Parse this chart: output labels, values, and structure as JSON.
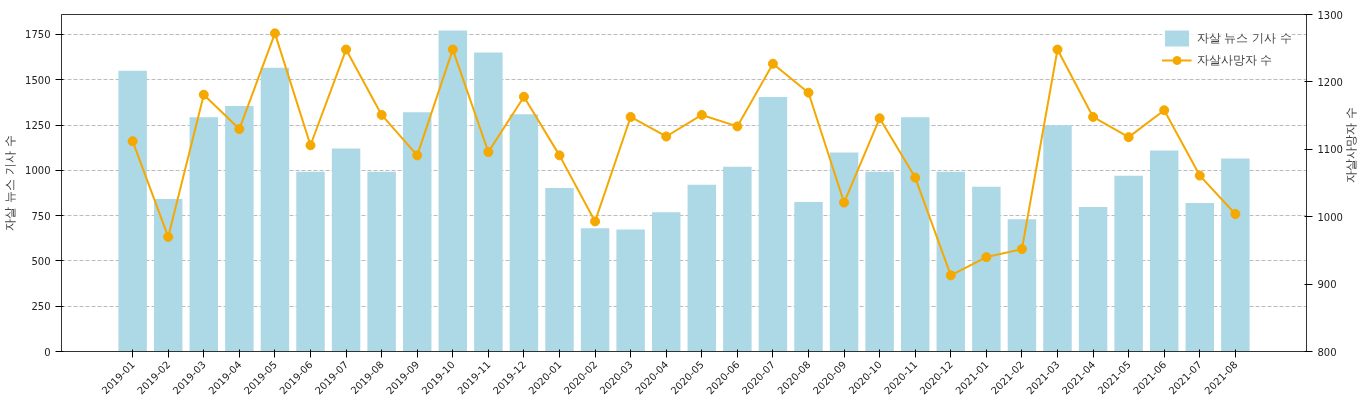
{
  "chart_data": {
    "type": "bar",
    "ylabel": "자살 뉴스 기사 수",
    "y2label": "자살사망자 수",
    "categories": [
      "2019-01",
      "2019-02",
      "2019-03",
      "2019-04",
      "2019-05",
      "2019-06",
      "2019-07",
      "2019-08",
      "2019-09",
      "2019-10",
      "2019-11",
      "2019-12",
      "2020-01",
      "2020-02",
      "2020-03",
      "2020-04",
      "2020-05",
      "2020-06",
      "2020-07",
      "2020-08",
      "2020-09",
      "2020-10",
      "2020-11",
      "2020-12",
      "2021-01",
      "2021-02",
      "2021-03",
      "2021-04",
      "2021-05",
      "2021-06",
      "2021-07",
      "2021-08"
    ],
    "series": [
      {
        "name": "자살 뉴스 기사 수",
        "color": "#add8e6",
        "values": [
          1550,
          842,
          1293,
          1355,
          1566,
          992,
          1120,
          992,
          1321,
          1772,
          1650,
          1310,
          903,
          680,
          674,
          769,
          920,
          1020,
          1405,
          825,
          1098,
          992,
          1293,
          992,
          909,
          730,
          1249,
          797,
          970,
          1109,
          819,
          1065
        ]
      },
      {
        "name": "자살사망자 수",
        "type": "line",
        "axis": "y2",
        "color": "#f5a800",
        "values": [
          1112,
          970,
          1181,
          1130,
          1272,
          1106,
          1248,
          1151,
          1091,
          1248,
          1096,
          1178,
          1091,
          993,
          1148,
          1119,
          1151,
          1134,
          1227,
          1184,
          1021,
          1146,
          1058,
          913,
          940,
          952,
          1248,
          1148,
          1118,
          1158,
          1061,
          1004
        ]
      }
    ],
    "ylim": [
      0,
      1860
    ],
    "yticks": [
      0,
      250,
      500,
      750,
      1000,
      1250,
      1500,
      1750
    ],
    "y2lim": [
      800,
      1300
    ],
    "y2ticks": [
      800,
      900,
      1000,
      1100,
      1200,
      1300
    ],
    "grid": "y",
    "legend": "top right",
    "marker": "circle",
    "line_style": "solid"
  }
}
